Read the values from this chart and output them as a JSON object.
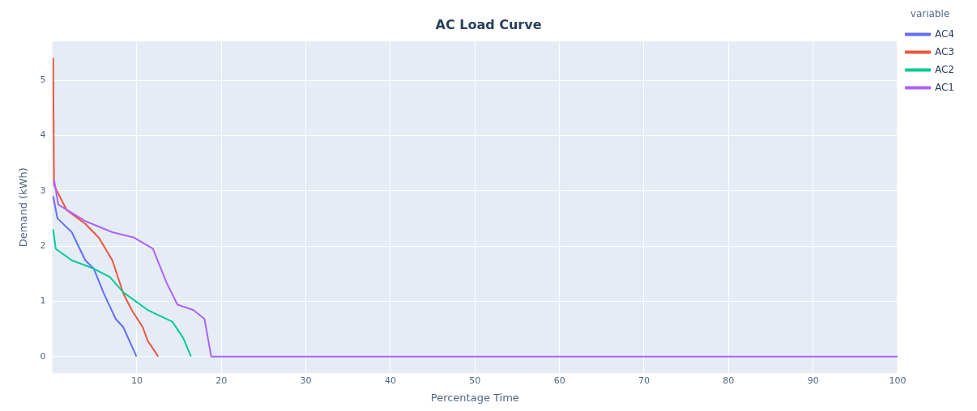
{
  "chart_data": {
    "type": "line",
    "title": "AC Load Curve",
    "xlabel": "Percentage Time",
    "ylabel": "Demand (kWh)",
    "legend_title": "variable",
    "xlim": [
      0,
      100
    ],
    "xticks": [
      10,
      20,
      30,
      40,
      50,
      60,
      70,
      80,
      90,
      100
    ],
    "ylim": [
      -0.3,
      5.7
    ],
    "yticks": [
      0,
      1,
      2,
      3,
      4,
      5
    ],
    "grid": true,
    "legend": "top right",
    "marker": "none",
    "line_style": "solid",
    "series": [
      {
        "name": "AC4",
        "color": "#636efa",
        "x": [
          0.1,
          0.6,
          2.3,
          3.9,
          4.9,
          6.1,
          7.5,
          8.4,
          9.95
        ],
        "values": [
          2.9,
          2.5,
          2.25,
          1.74,
          1.59,
          1.14,
          0.68,
          0.53,
          0
        ]
      },
      {
        "name": "AC3",
        "color": "#ef553b",
        "x": [
          0.1,
          0.2,
          1.7,
          3.9,
          5.5,
          7.1,
          8.4,
          9.4,
          10.7,
          11.3,
          12.4,
          12.5
        ],
        "values": [
          5.4,
          3.1,
          2.65,
          2.4,
          2.15,
          1.74,
          1.14,
          0.84,
          0.53,
          0.28,
          0.03,
          0
        ]
      },
      {
        "name": "AC2",
        "color": "#00cc96",
        "x": [
          0.1,
          0.4,
          2.3,
          4.9,
          6.8,
          8.4,
          11.3,
          14.2,
          15.5,
          16.4
        ],
        "values": [
          2.3,
          1.95,
          1.74,
          1.59,
          1.44,
          1.16,
          0.84,
          0.63,
          0.33,
          0
        ]
      },
      {
        "name": "AC1",
        "color": "#ab63fa",
        "x": [
          0.2,
          0.7,
          3.9,
          7.1,
          9.7,
          11.9,
          13.5,
          14.8,
          16.7,
          18.0,
          18.8,
          100
        ],
        "values": [
          3.2,
          2.75,
          2.45,
          2.25,
          2.15,
          1.95,
          1.34,
          0.94,
          0.84,
          0.68,
          0,
          0
        ]
      }
    ]
  }
}
